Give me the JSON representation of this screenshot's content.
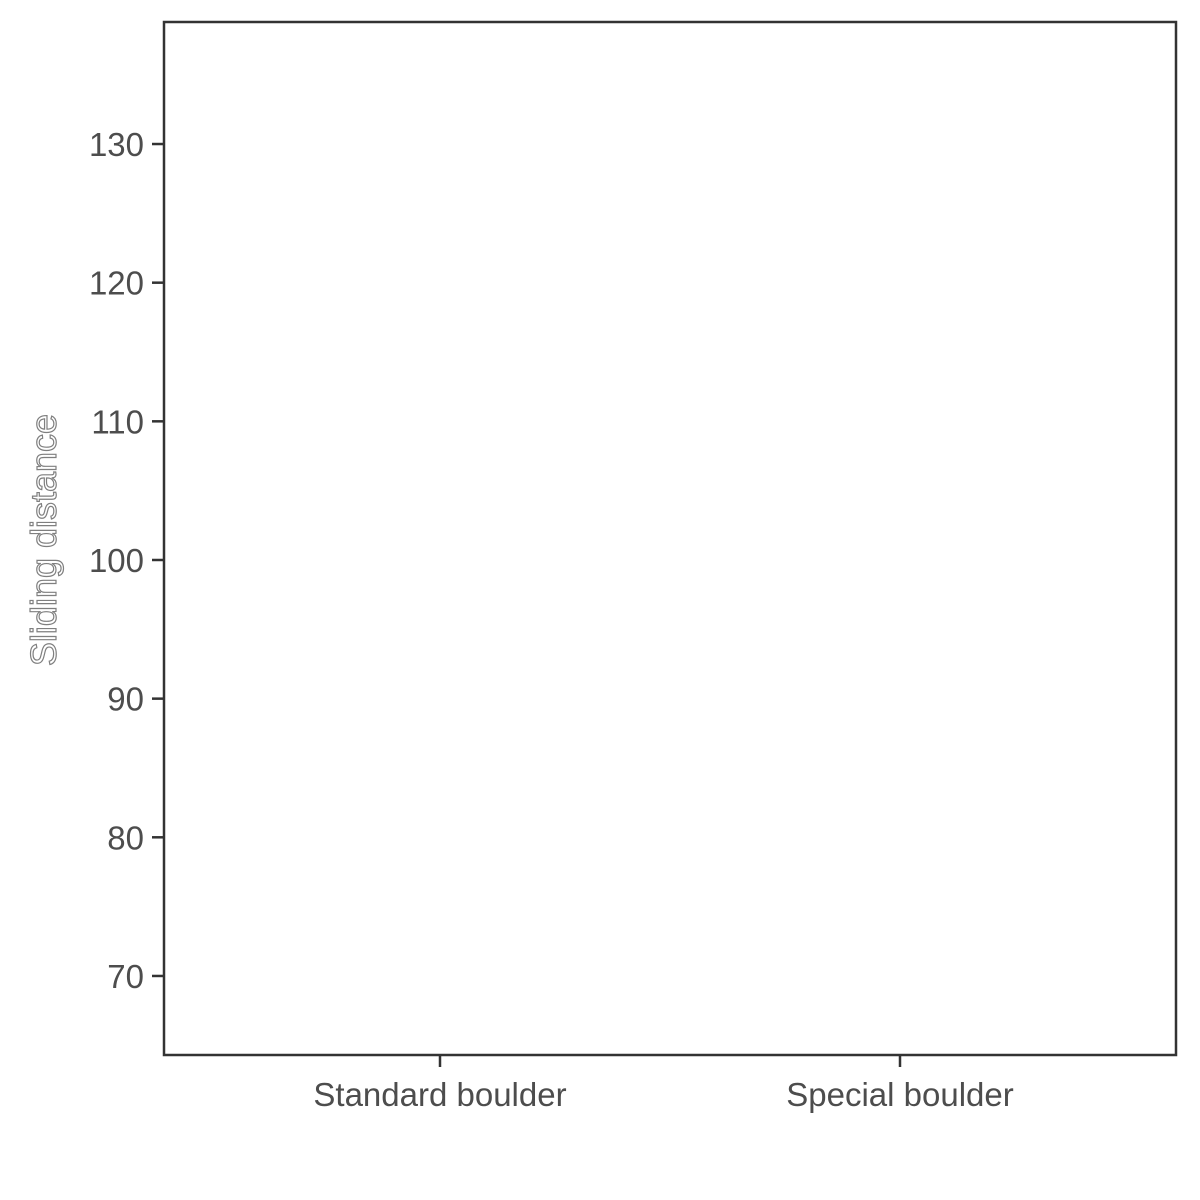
{
  "chart_data": {
    "type": "scatter",
    "categories": [
      "Standard boulder",
      "Special boulder"
    ],
    "series": [],
    "title": "",
    "xlabel": "",
    "ylabel": "Sliding distance",
    "ylim": [
      64.3,
      138.8
    ],
    "yticks": [
      70,
      80,
      90,
      100,
      110,
      120,
      130
    ],
    "grid": false,
    "legend": "none",
    "colors": {
      "axis": "#333333",
      "tick_text": "#4d4d4d",
      "background": "#ffffff"
    }
  }
}
